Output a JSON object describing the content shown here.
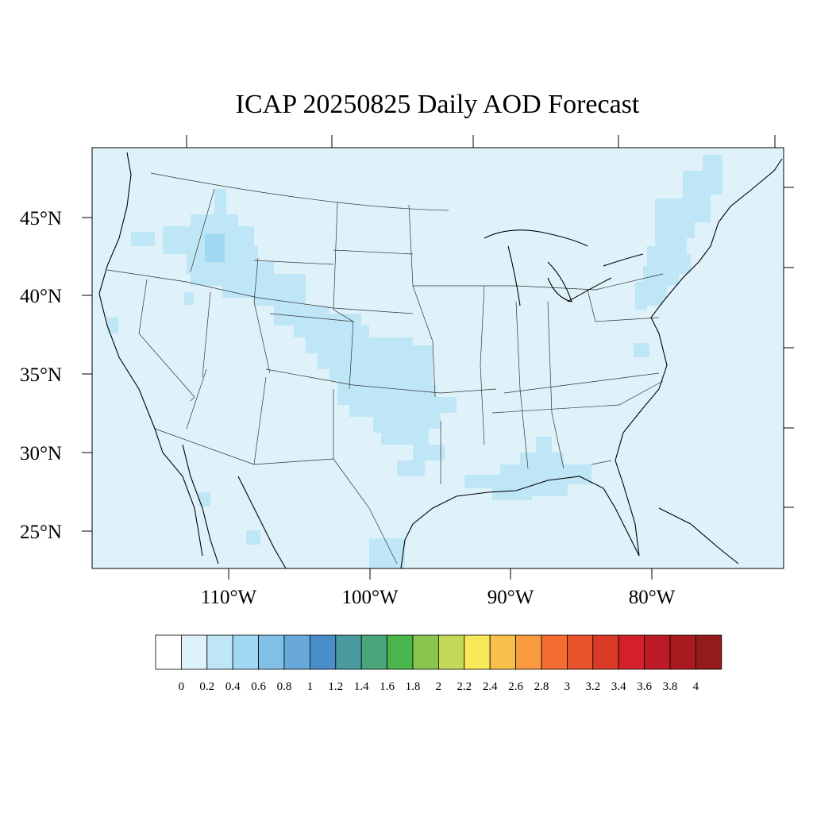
{
  "map": {
    "title": "ICAP 20250825 Daily AOD Forecast",
    "background_color": "#dff2fa",
    "lat_labels": [
      "45°N",
      "40°N",
      "35°N",
      "30°N",
      "25°N"
    ],
    "lon_labels": [
      "110°W",
      "100°W",
      "90°W",
      "80°W"
    ]
  },
  "colorbar": {
    "labels": [
      "0",
      "0.2",
      "0.4",
      "0.6",
      "0.8",
      "1",
      "1.2",
      "1.4",
      "1.6",
      "1.8",
      "2",
      "2.2",
      "2.4",
      "2.6",
      "2.8",
      "3",
      "3.2",
      "3.4",
      "3.6",
      "3.8",
      "4"
    ],
    "colors": [
      "#ffffff",
      "#dff2fa",
      "#bfe6f7",
      "#a0d8f3",
      "#80c0e6",
      "#68a8db",
      "#4a8ec9",
      "#4a9aa0",
      "#4aa57a",
      "#4ab54a",
      "#88c64e",
      "#c4d858",
      "#f8e85a",
      "#f8c04a",
      "#f89a40",
      "#f46c30",
      "#e8522c",
      "#dc3a28",
      "#d42028",
      "#bc1a24",
      "#a81a1e",
      "#941a1c"
    ]
  }
}
